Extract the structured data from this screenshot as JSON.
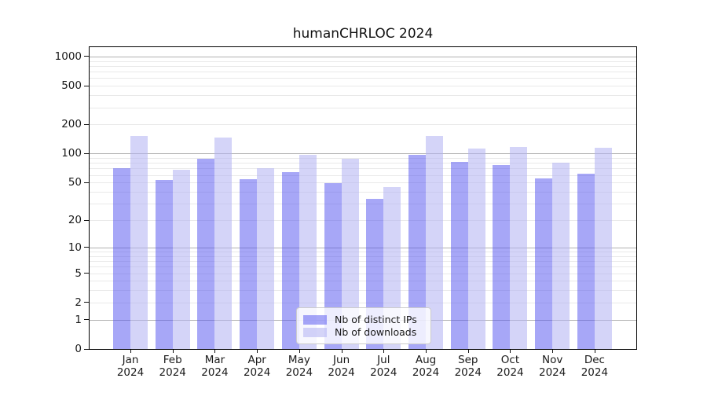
{
  "page": {
    "title": "humanCHRLOC 2024"
  },
  "chart_data": {
    "type": "bar",
    "title": "humanCHRLOC 2024",
    "categories": [
      "Jan 2024",
      "Feb 2024",
      "Mar 2024",
      "Apr 2024",
      "May 2024",
      "Jun 2024",
      "Jul 2024",
      "Aug 2024",
      "Sep 2024",
      "Oct 2024",
      "Nov 2024",
      "Dec 2024"
    ],
    "month_labels": [
      "Jan",
      "Feb",
      "Mar",
      "Apr",
      "May",
      "Jun",
      "Jul",
      "Aug",
      "Sep",
      "Oct",
      "Nov",
      "Dec"
    ],
    "year_label": "2024",
    "series": [
      {
        "name": "Nb of distinct IPs",
        "values": [
          70,
          53,
          88,
          54,
          64,
          49,
          34,
          98,
          82,
          76,
          55,
          62
        ]
      },
      {
        "name": "Nb of downloads",
        "values": [
          152,
          68,
          148,
          70,
          98,
          88,
          45,
          153,
          114,
          118,
          81,
          115
        ]
      }
    ],
    "xlabel": "",
    "ylabel": "",
    "yscale": "log1p",
    "ylim": [
      0,
      1250
    ],
    "yticks": [
      1000,
      500,
      200,
      100,
      50,
      20,
      10,
      5,
      2,
      1,
      0
    ],
    "major_gridlines": [
      1,
      10,
      100,
      1000
    ],
    "minor_gridlines": [
      2,
      3,
      4,
      5,
      6,
      7,
      8,
      9,
      20,
      30,
      40,
      50,
      60,
      70,
      80,
      90,
      200,
      300,
      400,
      500,
      600,
      700,
      800,
      900
    ],
    "grid": true,
    "legend_position": "inside lower-center"
  },
  "legend": {
    "items": [
      {
        "label": "Nb of distinct IPs"
      },
      {
        "label": "Nb of downloads"
      }
    ]
  },
  "colors": {
    "bar_ips": "rgba(86,86,240,0.52)",
    "bar_downloads": "rgba(178,178,243,0.56)",
    "grid_major": "#b0b0b0",
    "grid_minor": "#e9e9e9",
    "axis": "#000000",
    "text": "#1a1a1a",
    "legend_bg": "rgba(255,255,255,0.8)",
    "legend_border": "#cccccc"
  }
}
